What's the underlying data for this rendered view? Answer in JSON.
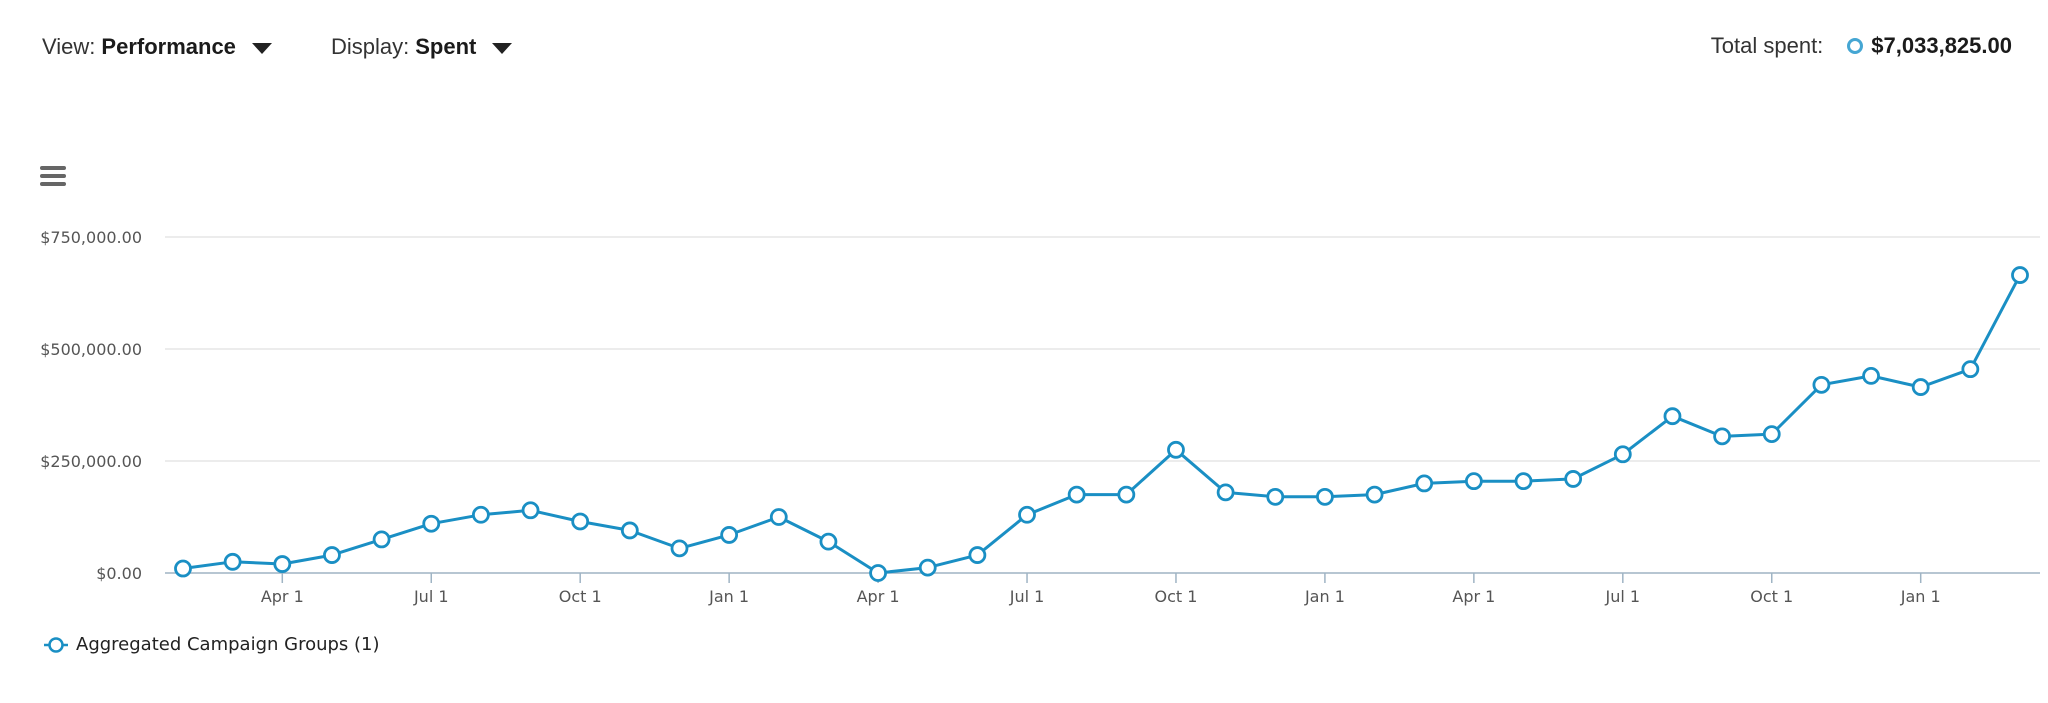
{
  "header": {
    "view_label": "View:",
    "view_value": "Performance",
    "display_label": "Display:",
    "display_value": "Spent",
    "total_label": "Total spent:",
    "total_value": "$7,033,825.00"
  },
  "icons": {
    "caret": "caret-down-icon",
    "menu": "hamburger-menu-icon",
    "series_marker": "hollow-circle-icon"
  },
  "colors": {
    "series": "#1a8fc4",
    "marker_fill": "#ffffff",
    "grid": "#e6e6e6",
    "axis": "#9fb4c4",
    "legend_dot": "#45a6d3"
  },
  "chart_data": {
    "type": "line",
    "title": "",
    "xlabel": "",
    "ylabel": "",
    "ylim": [
      0,
      750000
    ],
    "y_ticks": [
      {
        "value": 0,
        "label": "$0.00"
      },
      {
        "value": 250000,
        "label": "$250,000.00"
      },
      {
        "value": 500000,
        "label": "$500,000.00"
      },
      {
        "value": 750000,
        "label": "$750,000.00"
      }
    ],
    "x_ticks": [
      {
        "index": 2,
        "label": "Apr 1"
      },
      {
        "index": 5,
        "label": "Jul 1"
      },
      {
        "index": 8,
        "label": "Oct 1"
      },
      {
        "index": 11,
        "label": "Jan 1"
      },
      {
        "index": 14,
        "label": "Apr 1"
      },
      {
        "index": 17,
        "label": "Jul 1"
      },
      {
        "index": 20,
        "label": "Oct 1"
      },
      {
        "index": 23,
        "label": "Jan 1"
      },
      {
        "index": 26,
        "label": "Apr 1"
      },
      {
        "index": 29,
        "label": "Jul 1"
      },
      {
        "index": 32,
        "label": "Oct 1"
      },
      {
        "index": 35,
        "label": "Jan 1"
      }
    ],
    "grid": true,
    "legend": "bottom-left",
    "series": [
      {
        "name": "Aggregated Campaign Groups (1)",
        "values": [
          10000,
          25000,
          20000,
          40000,
          75000,
          110000,
          130000,
          140000,
          115000,
          95000,
          55000,
          85000,
          125000,
          70000,
          0,
          12000,
          40000,
          130000,
          175000,
          175000,
          275000,
          180000,
          170000,
          170000,
          175000,
          200000,
          205000,
          205000,
          210000,
          265000,
          350000,
          305000,
          310000,
          420000,
          440000,
          415000,
          455000,
          665000
        ]
      }
    ]
  }
}
